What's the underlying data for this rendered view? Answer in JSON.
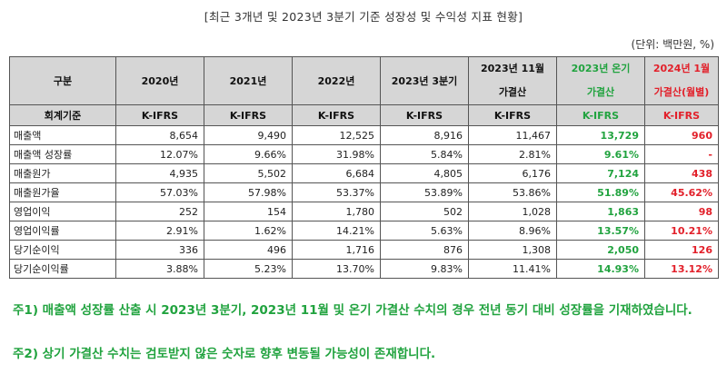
{
  "title": "[최근 3개년 및 2023년 3분기 기준 성장성 및 수익성 지표 현황]",
  "unit": "(단위: 백만원, %)",
  "table": {
    "header": {
      "c0": "구분",
      "c1": "2020년",
      "c2": "2021년",
      "c3": "2022년",
      "c4": "2023년 3분기",
      "c5a": "2023년 11월",
      "c5b": "가결산",
      "c6a": "2023년 온기",
      "c6b": "가결산",
      "c7a": "2024년 1월",
      "c7b": "가결산(월별)"
    },
    "standard": [
      "회계기준",
      "K-IFRS",
      "K-IFRS",
      "K-IFRS",
      "K-IFRS",
      "K-IFRS",
      "K-IFRS",
      "K-IFRS"
    ],
    "rows": [
      [
        "매출액",
        "8,654",
        "9,490",
        "12,525",
        "8,916",
        "11,467",
        "13,729",
        "960"
      ],
      [
        "매출액 성장률",
        "12.07%",
        "9.66%",
        "31.98%",
        "5.84%",
        "2.81%",
        "9.61%",
        "-"
      ],
      [
        "매출원가",
        "4,935",
        "5,502",
        "6,684",
        "4,805",
        "6,176",
        "7,124",
        "438"
      ],
      [
        "매출원가율",
        "57.03%",
        "57.98%",
        "53.37%",
        "53.89%",
        "53.86%",
        "51.89%",
        "45.62%"
      ],
      [
        "영업이익",
        "252",
        "154",
        "1,780",
        "502",
        "1,028",
        "1,863",
        "98"
      ],
      [
        "영업이익률",
        "2.91%",
        "1.62%",
        "14.21%",
        "5.63%",
        "8.96%",
        "13.57%",
        "10.21%"
      ],
      [
        "당기순이익",
        "336",
        "496",
        "1,716",
        "876",
        "1,308",
        "2,050",
        "126"
      ],
      [
        "당기순이익률",
        "3.88%",
        "5.23%",
        "13.70%",
        "9.83%",
        "11.41%",
        "14.93%",
        "13.12%"
      ]
    ]
  },
  "notes": [
    "주1) 매출액 성장률 산출 시 2023년 3분기, 2023년 11월 및 온기 가결산 수치의 경우 전년 동기 대비 성장률을 기재하였습니다.",
    "주2) 상기 가결산 수치는 검토받지 않은 숫자로 향후 변동될 가능성이 존재합니다."
  ],
  "colors": {
    "green": "#21a33f",
    "red": "#e2202a",
    "header_bg": "#d6d6d6"
  }
}
